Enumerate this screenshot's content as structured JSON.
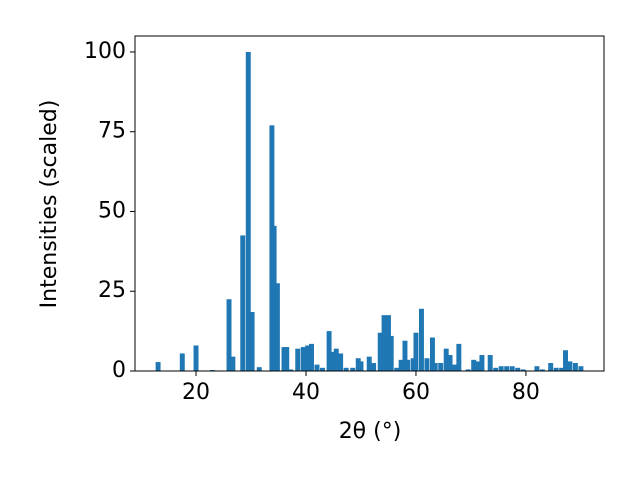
{
  "chart_data": {
    "type": "bar",
    "x_label": "2θ (°)",
    "y_label": "Intensities (scaled)",
    "x": [
      13.1,
      17.5,
      20,
      23,
      26,
      26.7,
      28.5,
      29.5,
      30.2,
      31.5,
      33.8,
      34.2,
      34.8,
      36,
      36.5,
      37.2,
      38.5,
      39.5,
      40.3,
      41,
      42,
      43,
      44.2,
      44.8,
      45.5,
      46.3,
      47.3,
      48.5,
      49.5,
      50,
      51.5,
      52.3,
      53.5,
      54.2,
      55,
      55.5,
      56.5,
      57.3,
      58,
      58.5,
      59.5,
      60,
      61,
      62,
      63,
      63.5,
      64.5,
      65.5,
      66.2,
      67,
      67.8,
      69.5,
      70.5,
      71.2,
      72,
      73.5,
      74.5,
      75.5,
      76.5,
      77.5,
      78.5,
      79.5,
      82,
      83,
      84.5,
      85.5,
      86.5,
      87.2,
      88,
      89,
      90
    ],
    "values": [
      2.8,
      5.5,
      8,
      0.3,
      22.5,
      4.5,
      42.5,
      100,
      18.5,
      1.2,
      77,
      45.5,
      27.5,
      7.5,
      7.5,
      0.5,
      7,
      7.5,
      8,
      8.5,
      2,
      1,
      12.5,
      6,
      7,
      5.5,
      1,
      1,
      4,
      3,
      4.5,
      2.5,
      12,
      17.5,
      17.5,
      11,
      1,
      3.5,
      9.5,
      3.5,
      4,
      12,
      19.5,
      4,
      10.5,
      2.5,
      2.5,
      7,
      5,
      2,
      8.5,
      0.5,
      3.5,
      3,
      5,
      5,
      1,
      1.5,
      1.5,
      1.5,
      1,
      0.5,
      1.5,
      0.5,
      2.5,
      1,
      1,
      6.5,
      3,
      2.5,
      1.5
    ],
    "color": "#1f77b4",
    "xlim": [
      8.9,
      94.2
    ],
    "ylim": [
      0,
      105
    ],
    "xticks": [
      20,
      40,
      60,
      80
    ],
    "yticks": [
      0,
      25,
      50,
      75,
      100
    ]
  }
}
